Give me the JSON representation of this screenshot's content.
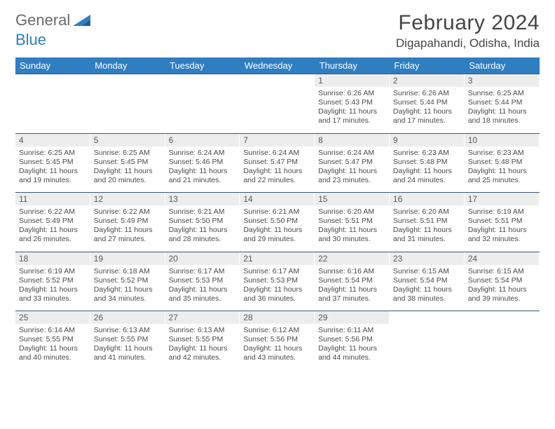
{
  "logo": {
    "text1": "General",
    "text2": "Blue"
  },
  "title": "February 2024",
  "location": "Digapahandi, Odisha, India",
  "colors": {
    "header_bg": "#2f7ec2",
    "header_fg": "#ffffff",
    "daynum_bg": "#ededed",
    "border": "#3b5876",
    "logo_gray": "#6a6a6a",
    "logo_blue": "#2f7ec2"
  },
  "weekdays": [
    "Sunday",
    "Monday",
    "Tuesday",
    "Wednesday",
    "Thursday",
    "Friday",
    "Saturday"
  ],
  "weeks": [
    [
      null,
      null,
      null,
      null,
      {
        "n": "1",
        "sr": "6:26 AM",
        "ss": "5:43 PM",
        "dl": "11 hours and 17 minutes."
      },
      {
        "n": "2",
        "sr": "6:26 AM",
        "ss": "5:44 PM",
        "dl": "11 hours and 17 minutes."
      },
      {
        "n": "3",
        "sr": "6:25 AM",
        "ss": "5:44 PM",
        "dl": "11 hours and 18 minutes."
      }
    ],
    [
      {
        "n": "4",
        "sr": "6:25 AM",
        "ss": "5:45 PM",
        "dl": "11 hours and 19 minutes."
      },
      {
        "n": "5",
        "sr": "6:25 AM",
        "ss": "5:45 PM",
        "dl": "11 hours and 20 minutes."
      },
      {
        "n": "6",
        "sr": "6:24 AM",
        "ss": "5:46 PM",
        "dl": "11 hours and 21 minutes."
      },
      {
        "n": "7",
        "sr": "6:24 AM",
        "ss": "5:47 PM",
        "dl": "11 hours and 22 minutes."
      },
      {
        "n": "8",
        "sr": "6:24 AM",
        "ss": "5:47 PM",
        "dl": "11 hours and 23 minutes."
      },
      {
        "n": "9",
        "sr": "6:23 AM",
        "ss": "5:48 PM",
        "dl": "11 hours and 24 minutes."
      },
      {
        "n": "10",
        "sr": "6:23 AM",
        "ss": "5:48 PM",
        "dl": "11 hours and 25 minutes."
      }
    ],
    [
      {
        "n": "11",
        "sr": "6:22 AM",
        "ss": "5:49 PM",
        "dl": "11 hours and 26 minutes."
      },
      {
        "n": "12",
        "sr": "6:22 AM",
        "ss": "5:49 PM",
        "dl": "11 hours and 27 minutes."
      },
      {
        "n": "13",
        "sr": "6:21 AM",
        "ss": "5:50 PM",
        "dl": "11 hours and 28 minutes."
      },
      {
        "n": "14",
        "sr": "6:21 AM",
        "ss": "5:50 PM",
        "dl": "11 hours and 29 minutes."
      },
      {
        "n": "15",
        "sr": "6:20 AM",
        "ss": "5:51 PM",
        "dl": "11 hours and 30 minutes."
      },
      {
        "n": "16",
        "sr": "6:20 AM",
        "ss": "5:51 PM",
        "dl": "11 hours and 31 minutes."
      },
      {
        "n": "17",
        "sr": "6:19 AM",
        "ss": "5:51 PM",
        "dl": "11 hours and 32 minutes."
      }
    ],
    [
      {
        "n": "18",
        "sr": "6:19 AM",
        "ss": "5:52 PM",
        "dl": "11 hours and 33 minutes."
      },
      {
        "n": "19",
        "sr": "6:18 AM",
        "ss": "5:52 PM",
        "dl": "11 hours and 34 minutes."
      },
      {
        "n": "20",
        "sr": "6:17 AM",
        "ss": "5:53 PM",
        "dl": "11 hours and 35 minutes."
      },
      {
        "n": "21",
        "sr": "6:17 AM",
        "ss": "5:53 PM",
        "dl": "11 hours and 36 minutes."
      },
      {
        "n": "22",
        "sr": "6:16 AM",
        "ss": "5:54 PM",
        "dl": "11 hours and 37 minutes."
      },
      {
        "n": "23",
        "sr": "6:15 AM",
        "ss": "5:54 PM",
        "dl": "11 hours and 38 minutes."
      },
      {
        "n": "24",
        "sr": "6:15 AM",
        "ss": "5:54 PM",
        "dl": "11 hours and 39 minutes."
      }
    ],
    [
      {
        "n": "25",
        "sr": "6:14 AM",
        "ss": "5:55 PM",
        "dl": "11 hours and 40 minutes."
      },
      {
        "n": "26",
        "sr": "6:13 AM",
        "ss": "5:55 PM",
        "dl": "11 hours and 41 minutes."
      },
      {
        "n": "27",
        "sr": "6:13 AM",
        "ss": "5:55 PM",
        "dl": "11 hours and 42 minutes."
      },
      {
        "n": "28",
        "sr": "6:12 AM",
        "ss": "5:56 PM",
        "dl": "11 hours and 43 minutes."
      },
      {
        "n": "29",
        "sr": "6:11 AM",
        "ss": "5:56 PM",
        "dl": "11 hours and 44 minutes."
      },
      null,
      null
    ]
  ],
  "labels": {
    "sunrise": "Sunrise:",
    "sunset": "Sunset:",
    "daylight": "Daylight:"
  }
}
